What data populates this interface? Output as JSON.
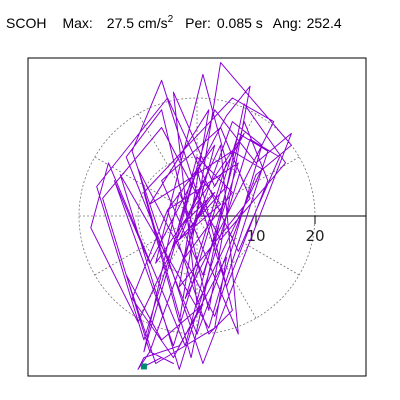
{
  "header": {
    "station": "SCOH",
    "max_label": "Max:",
    "max_value": "27.5",
    "max_unit": "cm/s",
    "max_unit_exp": "2",
    "per_label": "Per:",
    "per_value": "0.085 s",
    "ang_label": "Ang:",
    "ang_value": "252.4"
  },
  "colors": {
    "trace": "#8a00d4",
    "marker": "#008c6e",
    "axis": "#000000",
    "grid": "#777777",
    "frame": "#000000"
  },
  "chart_data": {
    "type": "line",
    "title": "SCOH",
    "grid": "polar-dotted",
    "rings": [
      10,
      20
    ],
    "tick_labels": [
      "10",
      "20"
    ],
    "xlim": [
      -29.5,
      29.5
    ],
    "ylim": [
      -27.5,
      27.5
    ],
    "end_marker": {
      "x": -9,
      "y": -25.5
    },
    "series": [
      {
        "x": [
          0,
          2,
          -1,
          3,
          -2,
          1,
          4,
          -3,
          2,
          5,
          -4,
          0,
          6,
          -2,
          3,
          -5,
          7,
          1,
          -6,
          4,
          9,
          -3,
          2,
          -8,
          6,
          11,
          0,
          -4,
          3,
          8,
          -7,
          1,
          5,
          -2,
          13,
          6,
          -9,
          -3,
          4,
          16,
          10,
          0,
          -12,
          -6,
          2,
          9,
          5,
          -8,
          -14,
          -4,
          7,
          12,
          3,
          -10,
          -1,
          8,
          15,
          4,
          -6,
          -16,
          -8,
          6,
          11,
          2,
          -13,
          -3,
          9,
          14,
          7,
          -5,
          -17,
          -9,
          3,
          10,
          16,
          1,
          -11,
          -6,
          5,
          12,
          8,
          -2,
          -15,
          -18,
          -10,
          4,
          7,
          -3,
          -9,
          0,
          6,
          2,
          -5,
          -11,
          -4,
          5,
          3,
          -7,
          -12,
          -6,
          1,
          -3,
          -9,
          -10,
          -8,
          -4,
          -6,
          -9
        ],
        "y": [
          0,
          3,
          -2,
          4,
          -1,
          6,
          2,
          -4,
          8,
          5,
          -5,
          10,
          4,
          -7,
          12,
          1,
          9,
          -10,
          6,
          15,
          3,
          -12,
          18,
          2,
          11,
          8,
          -15,
          21,
          5,
          14,
          -8,
          24,
          9,
          -14,
          16,
          20,
          4,
          -18,
          26,
          12,
          7,
          -20,
          10,
          18,
          -16,
          22,
          17,
          -8,
          6,
          -22,
          14,
          11,
          -17,
          8,
          -24,
          19,
          9,
          -4,
          15,
          3,
          -23,
          16,
          12,
          -19,
          7,
          -26,
          13,
          10,
          -6,
          20,
          5,
          -21,
          18,
          9,
          14,
          -25,
          11,
          23,
          -12,
          6,
          16,
          -22,
          9,
          -2,
          -18,
          12,
          -20,
          4,
          -23,
          8,
          -16,
          -20,
          1,
          -14,
          -24,
          -7,
          -19,
          -25,
          -10,
          -21,
          -15,
          -22,
          -24,
          -26,
          -23,
          -25,
          -24,
          -25.5
        ]
      }
    ]
  }
}
